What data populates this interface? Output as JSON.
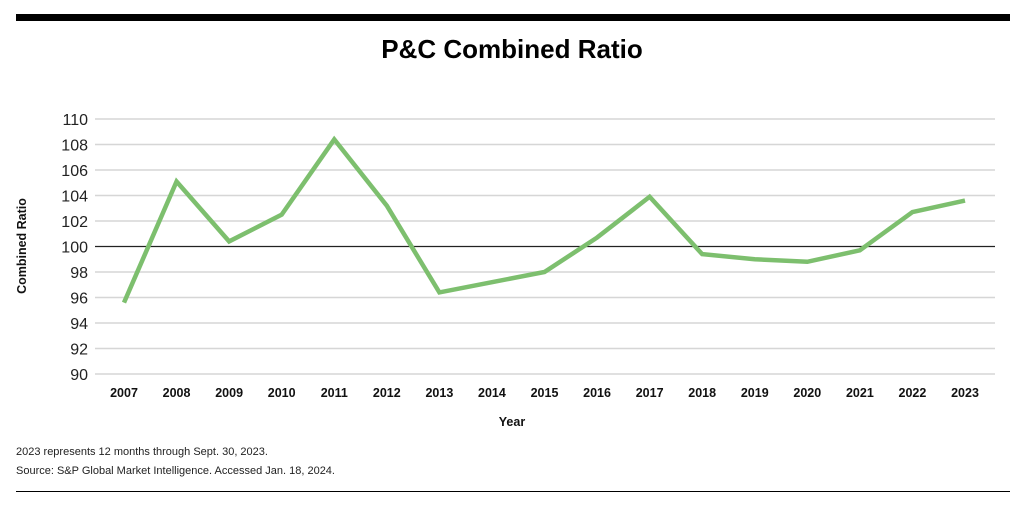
{
  "chart_data": {
    "type": "line",
    "title": "P&C Combined Ratio",
    "xlabel": "Year",
    "ylabel": "Combined Ratio",
    "ylim": [
      90,
      110
    ],
    "yticks": [
      90,
      92,
      94,
      96,
      98,
      100,
      102,
      104,
      106,
      108,
      110
    ],
    "reference_line": 100,
    "grid": true,
    "categories": [
      "2007",
      "2008",
      "2009",
      "2010",
      "2011",
      "2012",
      "2013",
      "2014",
      "2015",
      "2016",
      "2017",
      "2018",
      "2019",
      "2020",
      "2021",
      "2022",
      "2023"
    ],
    "series": [
      {
        "name": "Combined Ratio",
        "color": "#7dbf6e",
        "values": [
          95.6,
          105.1,
          100.4,
          102.5,
          108.4,
          103.2,
          96.4,
          97.2,
          98.0,
          100.7,
          103.9,
          99.4,
          99.0,
          98.8,
          99.7,
          102.7,
          103.6
        ]
      }
    ]
  },
  "notes": [
    "2023 represents 12 months through Sept. 30, 2023.",
    "Source: S&P Global Market Intelligence. Accessed Jan. 18, 2024."
  ]
}
